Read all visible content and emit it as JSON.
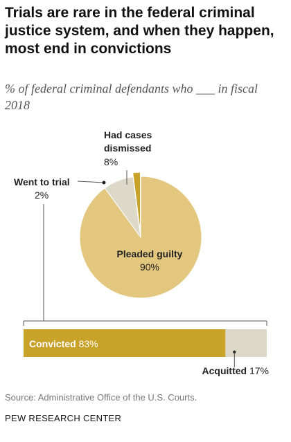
{
  "title": "Trials are rare in the federal criminal justice system, and when they happen, most end in convictions",
  "subtitle": "% of federal criminal defendants who ___ in fiscal 2018",
  "source": "Source: Administrative Office of the U.S. Courts.",
  "org": "PEW RESEARCH CENTER",
  "colors": {
    "pleaded": "#e3c77f",
    "trial": "#c9a22a",
    "dismissed": "#ddd9c9",
    "acquitted": "#ddd9c9",
    "line": "#555555"
  },
  "chart_data": [
    {
      "type": "pie",
      "slices": [
        {
          "label_bold": "Pleaded guilty",
          "value": 90,
          "value_label": "90%"
        },
        {
          "label_bold": "Had cases dismissed",
          "label_lines": [
            "Had cases",
            "dismissed"
          ],
          "value": 8,
          "value_label": "8%"
        },
        {
          "label_bold": "Went to trial",
          "value": 2,
          "value_label": "2%"
        }
      ]
    },
    {
      "type": "bar",
      "orientation": "horizontal",
      "stacked": true,
      "segments": [
        {
          "label": "Convicted",
          "value": 83,
          "value_label": "83%"
        },
        {
          "label": "Acquitted",
          "value": 17,
          "value_label": "17%"
        }
      ]
    }
  ]
}
